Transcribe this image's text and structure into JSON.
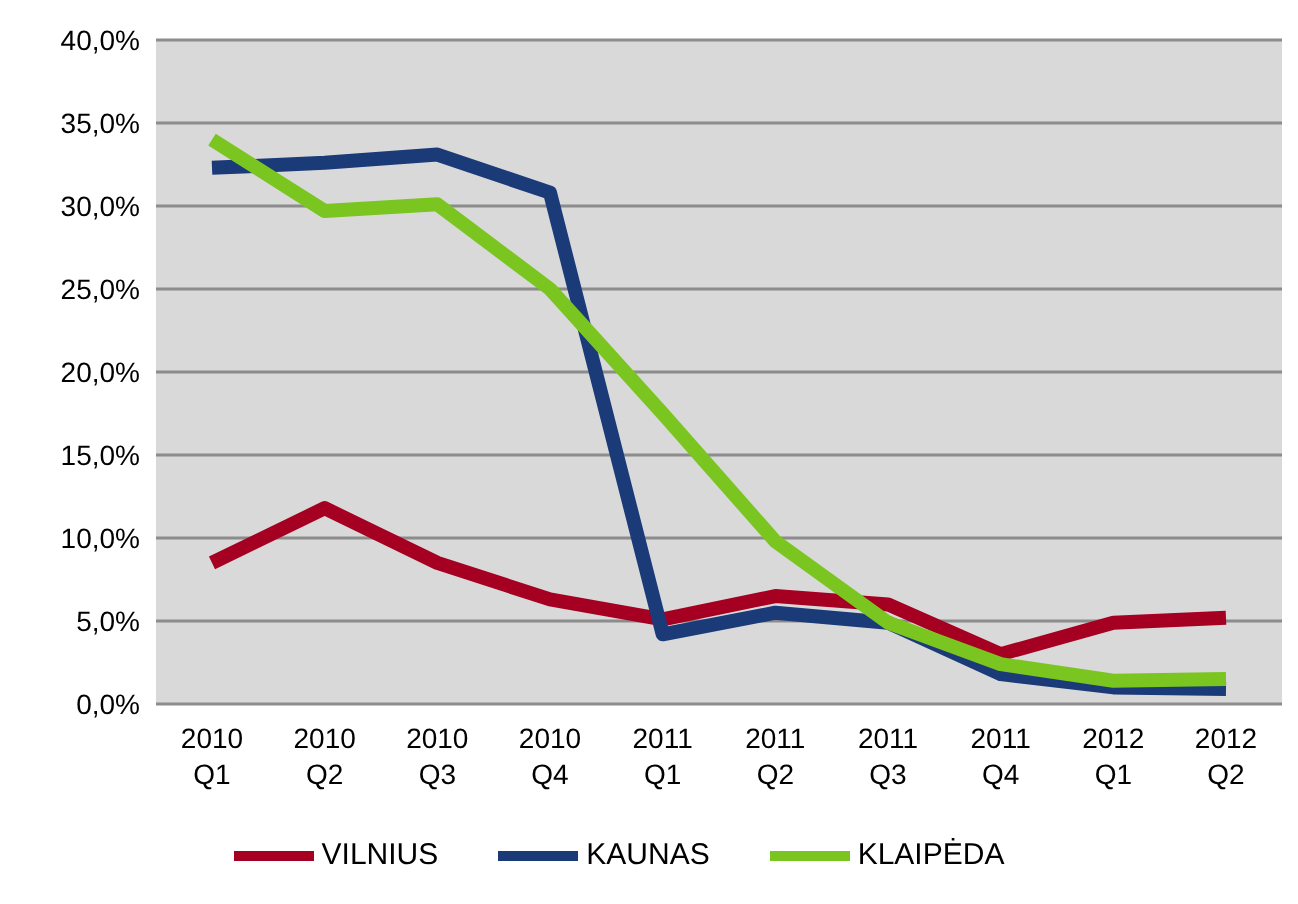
{
  "chart_data": {
    "type": "line",
    "categories": [
      "2010 Q1",
      "2010 Q2",
      "2010 Q3",
      "2010 Q4",
      "2011 Q1",
      "2011 Q2",
      "2011 Q3",
      "2011 Q4",
      "2012 Q1",
      "2012 Q2"
    ],
    "series": [
      {
        "name": "VILNIUS",
        "color": "#a50021",
        "values": [
          8.5,
          11.8,
          8.5,
          6.3,
          5.1,
          6.5,
          6.0,
          3.0,
          4.9,
          5.2
        ]
      },
      {
        "name": "KAUNAS",
        "color": "#1b3a78",
        "values": [
          32.3,
          32.6,
          33.1,
          30.8,
          4.2,
          5.5,
          4.9,
          1.8,
          1.0,
          0.9
        ]
      },
      {
        "name": "KLAIPĖDA",
        "color": "#7ac520",
        "values": [
          34.0,
          29.7,
          30.1,
          25.0,
          17.5,
          9.8,
          4.9,
          2.4,
          1.4,
          1.5
        ]
      }
    ],
    "ylim": [
      0,
      40
    ],
    "yticks": [
      {
        "value": 0,
        "label": "0,0%"
      },
      {
        "value": 5,
        "label": "5,0%"
      },
      {
        "value": 10,
        "label": "10,0%"
      },
      {
        "value": 15,
        "label": "15,0%"
      },
      {
        "value": 20,
        "label": "20,0%"
      },
      {
        "value": 25,
        "label": "25,0%"
      },
      {
        "value": 30,
        "label": "30,0%"
      },
      {
        "value": 35,
        "label": "35,0%"
      },
      {
        "value": 40,
        "label": "40,0%"
      }
    ],
    "grid": "y",
    "legend": "bottom",
    "marker": "none",
    "line_style": "solid"
  }
}
